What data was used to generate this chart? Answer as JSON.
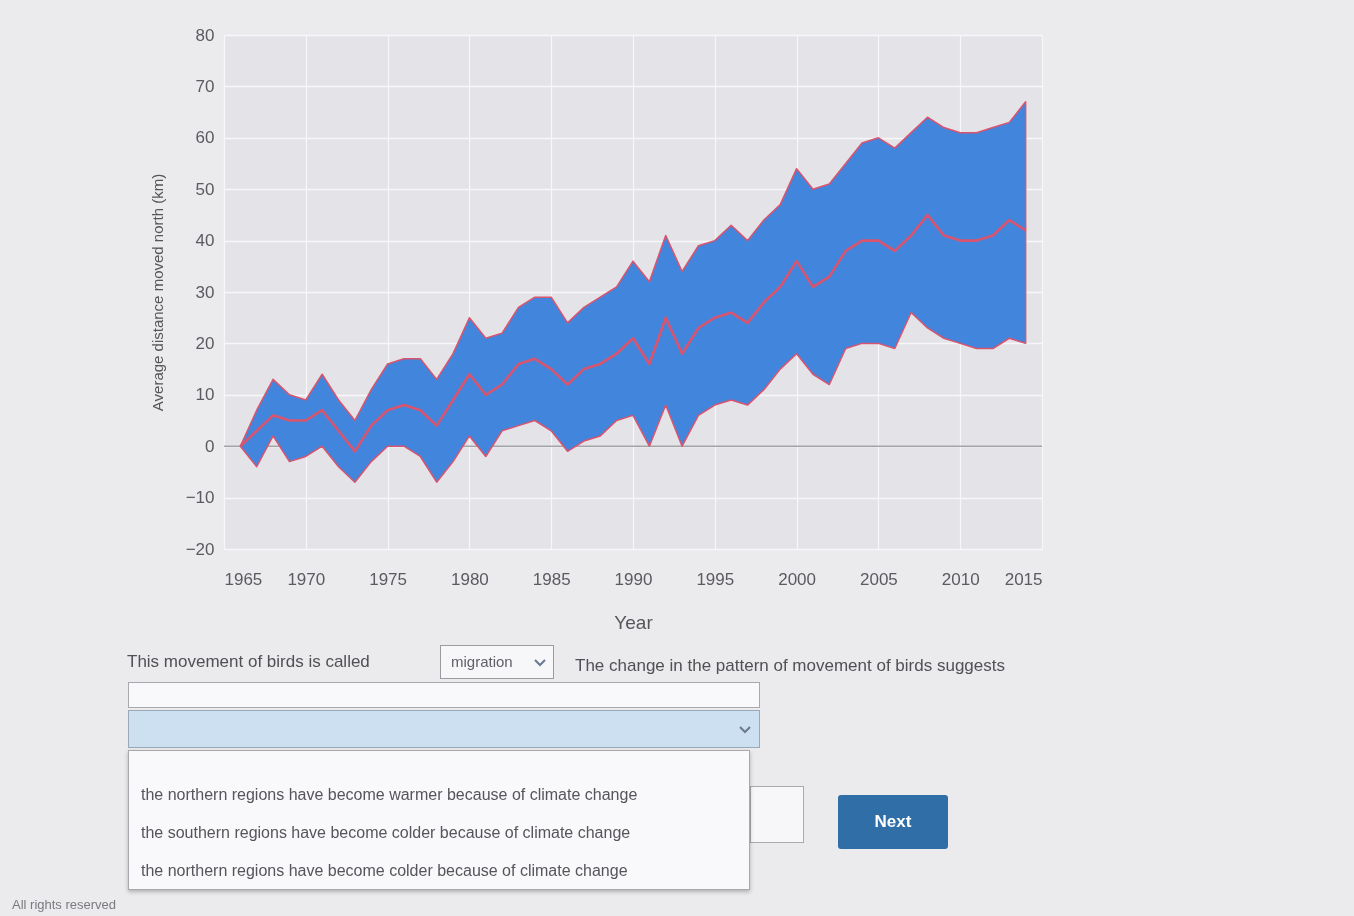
{
  "chart_data": {
    "type": "line",
    "xlabel": "Year",
    "ylabel": "Average distance moved north (km)",
    "x": [
      1966,
      1967,
      1968,
      1969,
      1970,
      1971,
      1972,
      1973,
      1974,
      1975,
      1976,
      1977,
      1978,
      1979,
      1980,
      1981,
      1982,
      1983,
      1984,
      1985,
      1986,
      1987,
      1988,
      1989,
      1990,
      1991,
      1992,
      1993,
      1994,
      1995,
      1996,
      1997,
      1998,
      1999,
      2000,
      2001,
      2002,
      2003,
      2004,
      2005,
      2006,
      2007,
      2008,
      2009,
      2010,
      2011,
      2012,
      2013,
      2014
    ],
    "series": [
      {
        "color": "#d9546e",
        "values": [
          0,
          3,
          6,
          5,
          5,
          7,
          3,
          -1,
          4,
          7,
          8,
          7,
          4,
          9,
          14,
          10,
          12,
          16,
          17,
          15,
          12,
          15,
          16,
          18,
          21,
          16,
          25,
          18,
          23,
          25,
          26,
          24,
          28,
          31,
          36,
          31,
          33,
          38,
          40,
          40,
          38,
          41,
          45,
          41,
          40,
          40,
          41,
          44,
          42
        ],
        "lower": [
          0,
          -4,
          2,
          -3,
          -2,
          0,
          -4,
          -7,
          -3,
          0,
          0,
          -2,
          -7,
          -3,
          2,
          -2,
          3,
          4,
          5,
          3,
          -1,
          1,
          2,
          5,
          6,
          0,
          8,
          0,
          6,
          8,
          9,
          8,
          11,
          15,
          18,
          14,
          12,
          19,
          20,
          20,
          19,
          26,
          23,
          21,
          20,
          19,
          19,
          21,
          20
        ],
        "upper": [
          0,
          7,
          13,
          10,
          9,
          14,
          9,
          5,
          11,
          16,
          17,
          17,
          13,
          18,
          25,
          21,
          22,
          27,
          29,
          29,
          24,
          27,
          29,
          31,
          36,
          32,
          41,
          34,
          39,
          40,
          43,
          40,
          44,
          47,
          54,
          50,
          51,
          55,
          59,
          60,
          58,
          61,
          64,
          62,
          61,
          61,
          62,
          63,
          67
        ]
      }
    ],
    "color": "#4186dc",
    "xlim": [
      1965,
      2015
    ],
    "xticks": [
      1965,
      1970,
      1975,
      1980,
      1985,
      1990,
      1995,
      2000,
      2005,
      2010,
      2015
    ],
    "ylim": [
      -20,
      80
    ],
    "yticks": [
      -20,
      -10,
      0,
      10,
      20,
      30,
      40,
      50,
      60,
      70,
      80
    ],
    "grid": true,
    "ref_lines": [
      {
        "axis": "y",
        "value": 0,
        "color": "#a3a3a8"
      }
    ],
    "annotations": [
      "This movement of birds is called",
      "migration",
      "The change in the pattern of movement of birds suggests",
      "the northern regions have become warmer because of climate change",
      "the southern regions have become colder because of climate change",
      "the northern regions have become colder because of climate change",
      "Next",
      "All rights reserved"
    ]
  }
}
